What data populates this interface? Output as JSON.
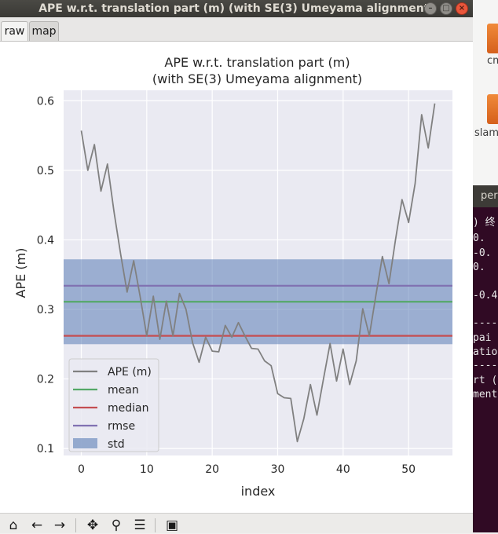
{
  "window": {
    "title": "APE w.r.t. translation part (m) (with SE(3) Umeyama alignment)",
    "buttons": {
      "minimize": "–",
      "maximize": "□",
      "close": "×"
    }
  },
  "tabs": [
    {
      "label": "raw"
    },
    {
      "label": "map"
    }
  ],
  "toolbar": {
    "icons": [
      "home-icon",
      "back-icon",
      "forward-icon",
      "pan-icon",
      "zoom-icon",
      "configure-subplots-icon",
      "save-icon"
    ],
    "glyphs": [
      "⌂",
      "←",
      "→",
      "✥",
      "⚲",
      "☰",
      "▣"
    ]
  },
  "background_apps": {
    "desktop_labels": [
      "cm",
      "slam"
    ],
    "terminal_title": "per",
    "terminal_lines": [
      ") 终",
      " 0.",
      "-0.",
      " 0.",
      "-0.4",
      "----",
      " pai",
      "atio",
      "----",
      "rt (",
      "ment"
    ]
  },
  "chart_data": {
    "type": "line",
    "title": "APE w.r.t. translation part (m)",
    "subtitle": "(with SE(3) Umeyama alignment)",
    "xlabel": "index",
    "ylabel": "APE (m)",
    "xlim": [
      -2.7,
      56.7
    ],
    "ylim": [
      0.09,
      0.615
    ],
    "xticks": [
      0,
      10,
      20,
      30,
      40,
      50
    ],
    "yticks": [
      0.1,
      0.2,
      0.3,
      0.4,
      0.5,
      0.6
    ],
    "grid": true,
    "background": "#eaeaf2",
    "legend_position": "lower-left",
    "x": [
      0,
      1,
      2,
      3,
      4,
      5,
      6,
      7,
      8,
      9,
      10,
      11,
      12,
      13,
      14,
      15,
      16,
      17,
      18,
      19,
      20,
      21,
      22,
      23,
      24,
      25,
      26,
      27,
      28,
      29,
      30,
      31,
      32,
      33,
      34,
      35,
      36,
      37,
      38,
      39,
      40,
      41,
      42,
      43,
      44,
      45,
      46,
      47,
      48,
      49,
      50,
      51,
      52,
      53,
      54
    ],
    "series": [
      {
        "name": "APE (m)",
        "color": "#808080",
        "values": [
          0.557,
          0.5,
          0.537,
          0.47,
          0.509,
          0.44,
          0.38,
          0.325,
          0.37,
          0.318,
          0.262,
          0.319,
          0.257,
          0.312,
          0.262,
          0.323,
          0.3,
          0.252,
          0.224,
          0.26,
          0.24,
          0.239,
          0.277,
          0.26,
          0.281,
          0.262,
          0.244,
          0.243,
          0.226,
          0.219,
          0.179,
          0.173,
          0.172,
          0.11,
          0.143,
          0.192,
          0.148,
          0.2,
          0.251,
          0.197,
          0.243,
          0.192,
          0.226,
          0.301,
          0.262,
          0.32,
          0.376,
          0.337,
          0.4,
          0.458,
          0.425,
          0.481,
          0.58,
          0.532,
          0.596
        ]
      }
    ],
    "stats": [
      {
        "name": "mean",
        "value": 0.311,
        "color": "#55a868"
      },
      {
        "name": "median",
        "value": 0.262,
        "color": "#c44e52"
      },
      {
        "name": "rmse",
        "value": 0.334,
        "color": "#8172b2"
      }
    ],
    "std_band": {
      "name": "std",
      "range": [
        0.25,
        0.372
      ],
      "color": "#4c72b0"
    }
  }
}
